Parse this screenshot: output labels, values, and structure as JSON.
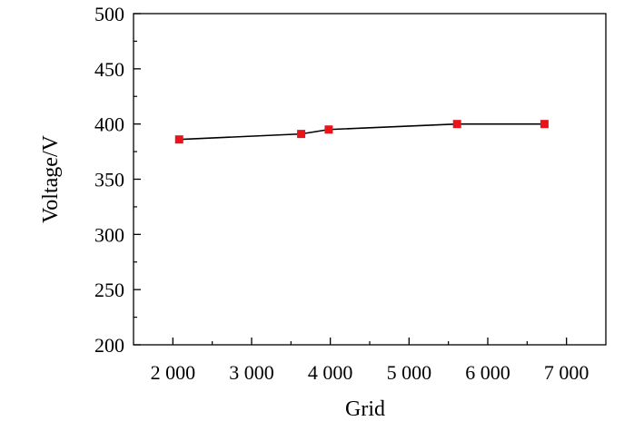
{
  "chart_data": {
    "type": "line",
    "title": "",
    "xlabel": "Grid",
    "ylabel": "Voltage/V",
    "xlim": [
      1500,
      7500
    ],
    "ylim": [
      200,
      500
    ],
    "xticks": [
      2000,
      3000,
      4000,
      5000,
      6000,
      7000
    ],
    "xtick_labels": [
      "2 000",
      "3 000",
      "4 000",
      "5 000",
      "6 000",
      "7 000"
    ],
    "yticks": [
      200,
      250,
      300,
      350,
      400,
      450,
      500
    ],
    "ytick_labels": [
      "200",
      "250",
      "300",
      "350",
      "400",
      "450",
      "500"
    ],
    "grid": false,
    "series": [
      {
        "x": [
          2080,
          3630,
          3980,
          5610,
          6720
        ],
        "y": [
          386,
          391,
          395,
          400,
          400
        ],
        "line_color": "#000000",
        "marker_color": "#e8141a",
        "marker": "square"
      }
    ]
  }
}
